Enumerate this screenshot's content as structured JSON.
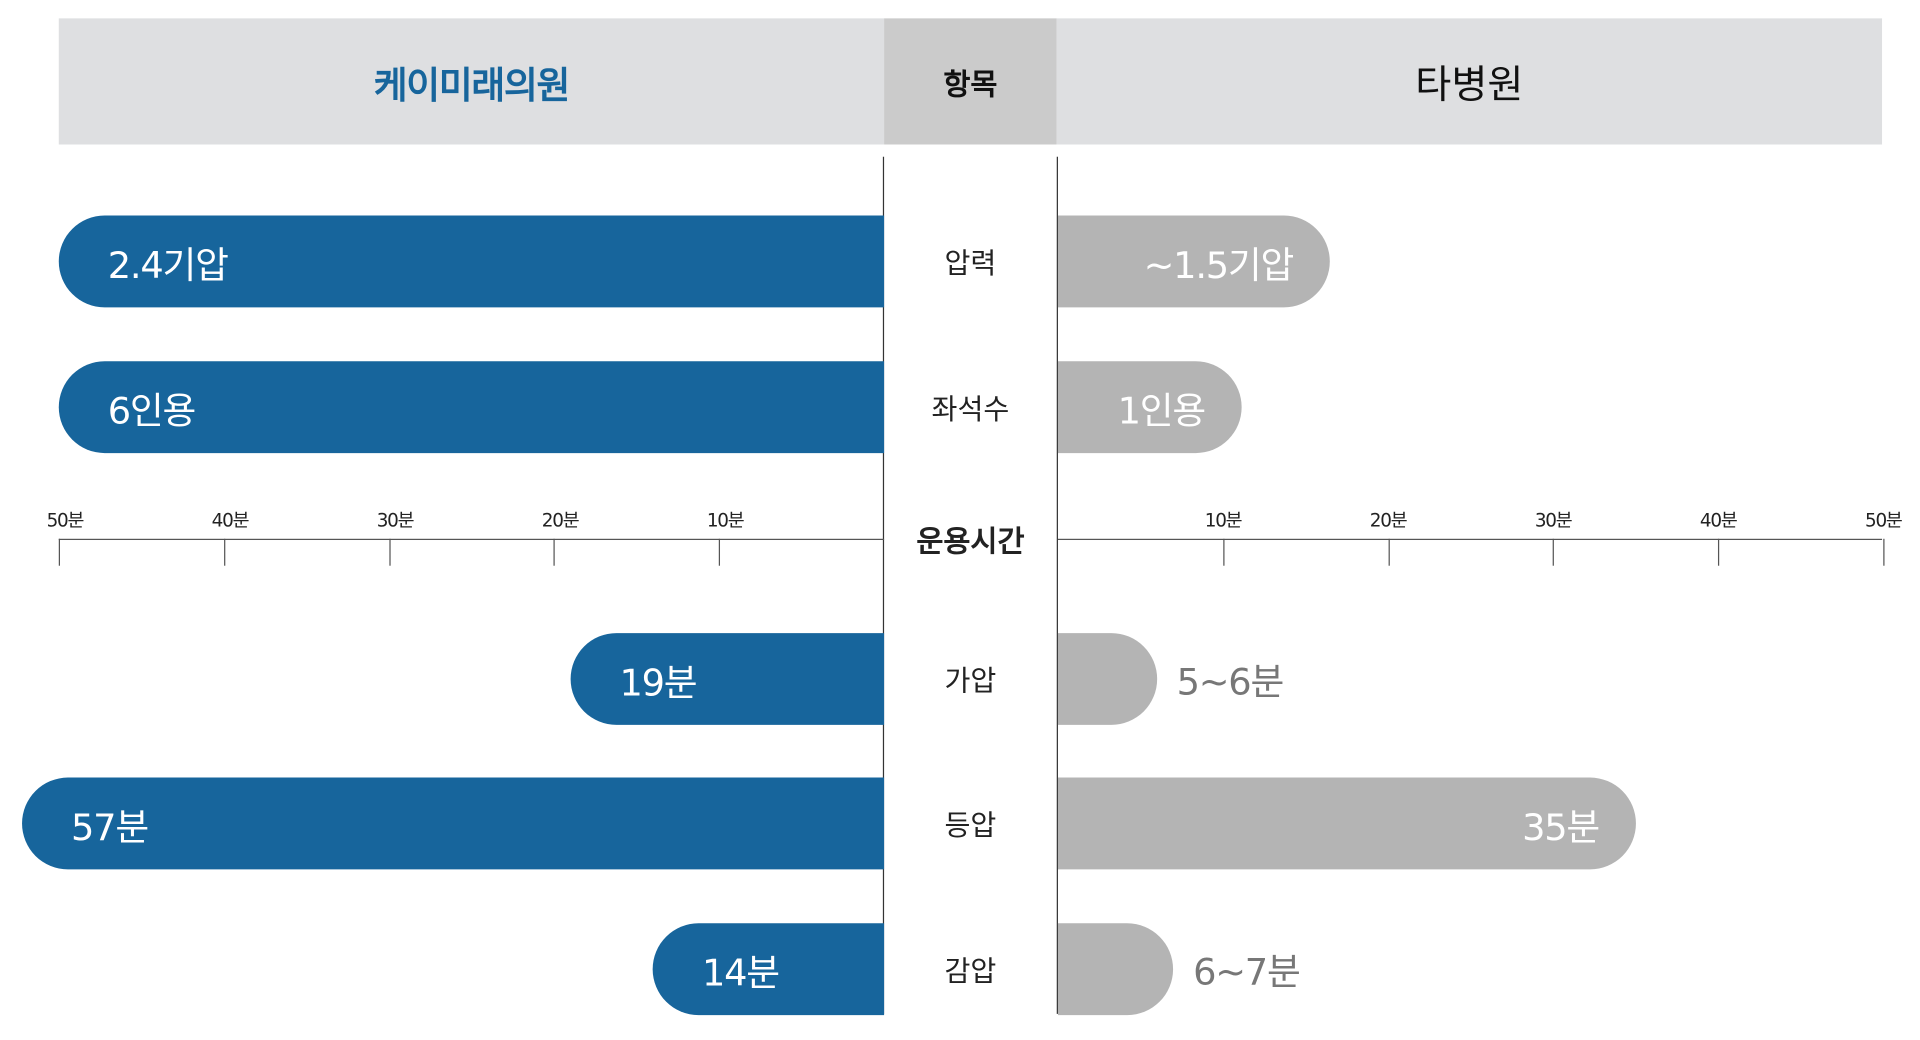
{
  "chart_data": {
    "type": "bar",
    "orientation": "horizontal-diverging",
    "header": {
      "left": "케이미래의원",
      "center": "항목",
      "right": "타병원"
    },
    "colors": {
      "left": "#17659c",
      "right": "#b4b4b4",
      "header": "#dedfe1",
      "header_center": "#cbcbcb"
    },
    "categories": [
      "압력",
      "좌석수",
      "가압",
      "등압",
      "감압"
    ],
    "axis": {
      "title": "운용시간",
      "unit": "분",
      "range": [
        0,
        50
      ],
      "ticks_left": [
        "50분",
        "40분",
        "30분",
        "20분",
        "10분"
      ],
      "ticks_right": [
        "10분",
        "20분",
        "30분",
        "40분",
        "50분"
      ],
      "tick_values": [
        50,
        40,
        30,
        20,
        10
      ]
    },
    "series": [
      {
        "name": "케이미래의원",
        "labels": [
          "2.4기압",
          "6인용",
          "19분",
          "57분",
          "14분"
        ],
        "values": [
          2.4,
          6,
          19,
          57,
          14
        ]
      },
      {
        "name": "타병원",
        "labels": [
          "~1.5기압",
          "1인용",
          "5~6분",
          "35분",
          "6~7분"
        ],
        "values": [
          1.5,
          1,
          6,
          35,
          7
        ]
      }
    ]
  }
}
